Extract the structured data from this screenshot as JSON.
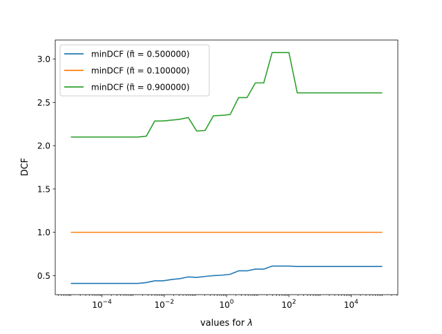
{
  "chart_data": {
    "type": "line",
    "title": "",
    "xlabel": "values for λ",
    "ylabel": "DCF",
    "x_scale": "log",
    "xlim": [
      3.16e-06,
      316228
    ],
    "ylim": [
      0.28,
      3.22
    ],
    "grid": false,
    "legend_position": "top-left",
    "x_ticks": [
      {
        "value": 0.0001,
        "base": "10",
        "exp": "−4"
      },
      {
        "value": 0.01,
        "base": "10",
        "exp": "−2"
      },
      {
        "value": 1,
        "base": "10",
        "exp": "0"
      },
      {
        "value": 100,
        "base": "10",
        "exp": "2"
      },
      {
        "value": 10000,
        "base": "10",
        "exp": "4"
      }
    ],
    "y_ticks": [
      "0.5",
      "1.0",
      "1.5",
      "2.0",
      "2.5",
      "3.0"
    ],
    "x": [
      1e-05,
      1.86e-05,
      3.46e-05,
      6.43e-05,
      0.00012,
      0.000222,
      0.000414,
      0.00077,
      0.00143,
      0.00266,
      0.00494,
      0.00919,
      0.0171,
      0.0317,
      0.059,
      0.11,
      0.204,
      0.379,
      0.705,
      1.31,
      2.44,
      4.53,
      8.42,
      15.7,
      29.1,
      54.1,
      101,
      187,
      348,
      647,
      1200,
      2240,
      4160,
      7730,
      14400,
      26700,
      49700,
      92400,
      100000
    ],
    "series": [
      {
        "name": "minDCF (π̃ = 0.500000)",
        "color": "#1f77b4",
        "values": [
          0.41,
          0.41,
          0.41,
          0.41,
          0.41,
          0.41,
          0.41,
          0.41,
          0.41,
          0.42,
          0.44,
          0.44,
          0.455,
          0.465,
          0.485,
          0.48,
          0.49,
          0.5,
          0.505,
          0.515,
          0.555,
          0.555,
          0.575,
          0.575,
          0.61,
          0.61,
          0.61,
          0.605,
          0.605,
          0.605,
          0.605,
          0.605,
          0.605,
          0.605,
          0.605,
          0.605,
          0.605,
          0.605,
          0.605
        ]
      },
      {
        "name": "minDCF (π̃ = 0.100000)",
        "color": "#ff7f0e",
        "values": [
          1.0,
          1.0,
          1.0,
          1.0,
          1.0,
          1.0,
          1.0,
          1.0,
          1.0,
          1.0,
          1.0,
          1.0,
          1.0,
          1.0,
          1.0,
          1.0,
          1.0,
          1.0,
          1.0,
          1.0,
          1.0,
          1.0,
          1.0,
          1.0,
          1.0,
          1.0,
          1.0,
          1.0,
          1.0,
          1.0,
          1.0,
          1.0,
          1.0,
          1.0,
          1.0,
          1.0,
          1.0,
          1.0,
          1.0
        ]
      },
      {
        "name": "minDCF (π̃ = 0.900000)",
        "color": "#2ca02c",
        "values": [
          2.1,
          2.1,
          2.1,
          2.1,
          2.1,
          2.1,
          2.1,
          2.1,
          2.1,
          2.11,
          2.285,
          2.285,
          2.295,
          2.305,
          2.325,
          2.17,
          2.175,
          2.345,
          2.35,
          2.36,
          2.555,
          2.555,
          2.725,
          2.725,
          3.075,
          3.075,
          3.075,
          2.61,
          2.61,
          2.61,
          2.61,
          2.61,
          2.61,
          2.61,
          2.61,
          2.61,
          2.61,
          2.61,
          2.61
        ]
      }
    ]
  }
}
